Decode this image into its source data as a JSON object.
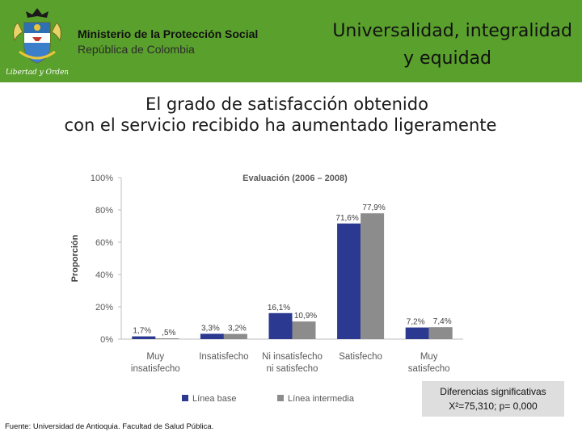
{
  "header": {
    "ministry": "Ministerio de la Protección Social",
    "republic": "República de Colombia",
    "slogan_line1": "Universalidad, integralidad",
    "slogan_line2": "y equidad",
    "logo_motto": "Libertad y Orden",
    "bg_color": "#5aa02c"
  },
  "title": {
    "line1": "El grado de satisfacción obtenido",
    "line2": "con el servicio recibido ha aumentado ligeramente"
  },
  "chart_data": {
    "type": "bar",
    "title": "Evaluación (2006 – 2008)",
    "ylabel": "Proporción",
    "xlabel": "",
    "ylim": [
      0,
      100
    ],
    "yticks": [
      "0%",
      "20%",
      "40%",
      "60%",
      "80%",
      "100%"
    ],
    "categories": [
      [
        "Muy",
        "insatisfecho"
      ],
      [
        "Insatisfecho"
      ],
      [
        "Ni insatisfecho",
        "ni satisfecho"
      ],
      [
        "Satisfecho"
      ],
      [
        "Muy",
        "satisfecho"
      ]
    ],
    "series": [
      {
        "name": "Línea base",
        "color": "#2b3990",
        "values": [
          1.7,
          3.3,
          16.1,
          71.6,
          7.2
        ],
        "labels": [
          "1,7%",
          "3,3%",
          "16,1%",
          "71,6%",
          "7,2%"
        ]
      },
      {
        "name": "Línea intermedia",
        "color": "#8c8c8c",
        "values": [
          0.5,
          3.2,
          10.9,
          77.9,
          7.4
        ],
        "labels": [
          ",5%",
          "3,2%",
          "10,9%",
          "77,9%",
          "7,4%"
        ]
      }
    ],
    "legend_position": "bottom"
  },
  "stats": {
    "line1": "Diferencias significativas",
    "line2": "X²=75,310; p= 0,000"
  },
  "source": "Fuente: Universidad de Antioquia. Facultad de Salud Pública."
}
